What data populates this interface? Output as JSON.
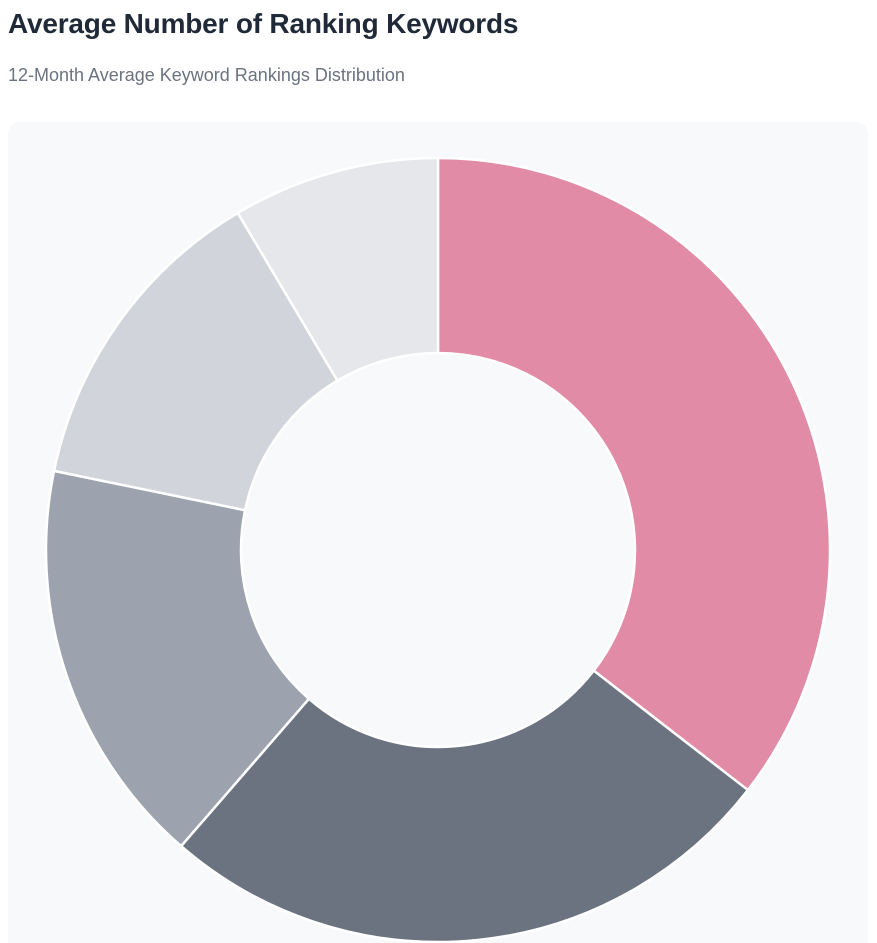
{
  "header": {
    "title": "Average Number of Ranking Keywords",
    "subtitle": "12-Month Average Keyword Rankings Distribution"
  },
  "chart_data": {
    "type": "pie",
    "variant": "doughnut",
    "title": "Average Number of Ranking Keywords",
    "subtitle": "12-Month Average Keyword Rankings Distribution",
    "legend": "none",
    "values": [
      36.2,
      26.4,
      17.2,
      13.5,
      8.7
    ],
    "colors": [
      "#e18ba6",
      "#6b7280",
      "#9ca3af",
      "#d1d5db",
      "#e5e7eb"
    ],
    "start_angle_deg": 0,
    "direction": "clockwise",
    "slice_border_color": "#ffffff"
  }
}
